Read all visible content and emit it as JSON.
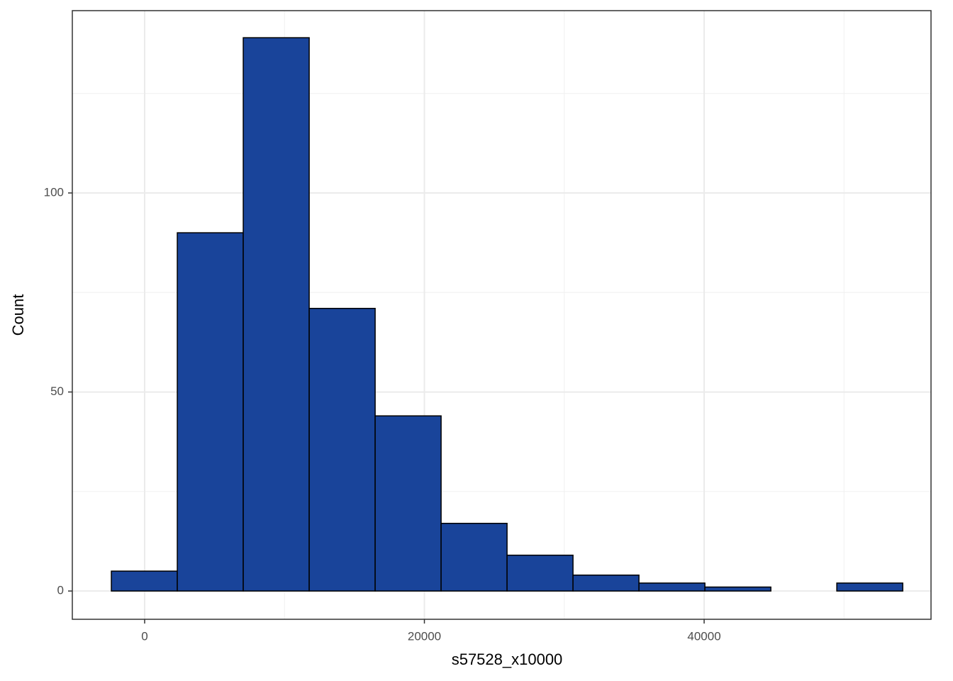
{
  "chart_data": {
    "type": "histogram",
    "x_label": "s57528_x10000",
    "y_label": "Count",
    "bins": [
      -2380,
      2335,
      7050,
      11765,
      16480,
      21195,
      25910,
      30625,
      35340,
      40055,
      44770,
      49485,
      54200
    ],
    "values": [
      5,
      90,
      139,
      71,
      44,
      17,
      9,
      4,
      2,
      1,
      0,
      2
    ],
    "color": "#19449a",
    "edge_color": "#000000",
    "xlim": [
      -5170,
      56220
    ],
    "ylim": [
      -7.1,
      145.8
    ],
    "xticks": [
      0,
      20000,
      40000
    ],
    "yticks": [
      0,
      50,
      100
    ],
    "minor_xticks": [
      10000,
      30000,
      50000
    ],
    "minor_yticks": [
      25,
      75,
      125
    ],
    "grid": true
  }
}
